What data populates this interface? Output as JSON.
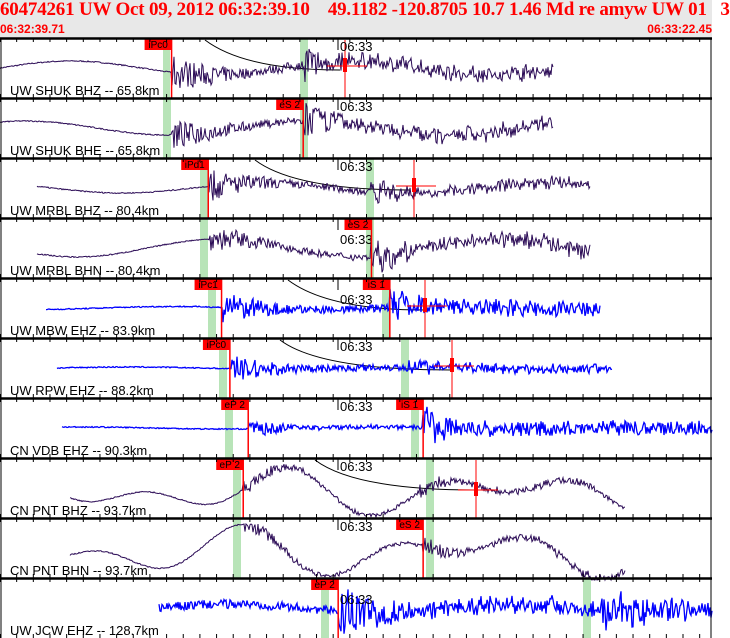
{
  "header": {
    "title": "60474261 UW Oct 09, 2012 06:32:39.10    49.1182 -120.8705 10.7 1.46 Md re amyw UW 01   3",
    "start_time": "06:32:39.71",
    "end_time": "06:33:22.45"
  },
  "window_seconds": 42.74,
  "minute_mark": {
    "label": "06:33",
    "seconds": 20.29
  },
  "colors": {
    "header_text": "#ff0000",
    "header_bg": "#e8e8e8",
    "trace_bb": "#2a0a55",
    "trace_sp": "#0000ff",
    "pick": "#ff0000",
    "theory_band": "#b8e4b8"
  },
  "channels": [
    {
      "label": "UW SHUK BHZ -- 65.8km",
      "type": "bb",
      "picks": [
        {
          "label": "iPc0",
          "t": 10.3
        }
      ]
    },
    {
      "label": "UW SHUK BHE -- 65.8km",
      "type": "bb",
      "picks": [
        {
          "label": "eS 2",
          "t": 18.2
        }
      ]
    },
    {
      "label": "UW MRBL BHZ -- 80.4km",
      "type": "bb",
      "picks": [
        {
          "label": "iPd1",
          "t": 12.5
        }
      ]
    },
    {
      "label": "UW MRBL BHN -- 80.4km",
      "type": "bb",
      "picks": [
        {
          "label": "eS 2",
          "t": 22.3
        }
      ]
    },
    {
      "label": "UW MBW EHZ -- 83.9km",
      "type": "sp",
      "picks": [
        {
          "label": "iPc1",
          "t": 13.3
        },
        {
          "label": "iS 1",
          "t": 23.4
        }
      ]
    },
    {
      "label": "UW RPW EHZ -- 88.2km",
      "type": "sp",
      "picks": [
        {
          "label": "iPc0",
          "t": 13.8
        }
      ]
    },
    {
      "label": "CN VDB EHZ -- 90.3km",
      "type": "sp",
      "picks": [
        {
          "label": "eP 2",
          "t": 14.9
        },
        {
          "label": "iS 1",
          "t": 25.4
        }
      ]
    },
    {
      "label": "CN PNT BHZ -- 93.7km",
      "type": "bb",
      "picks": [
        {
          "label": "eP 2",
          "t": 14.6
        }
      ]
    },
    {
      "label": "CN PNT BHN -- 93.7km",
      "type": "bb",
      "picks": [
        {
          "label": "eS 2",
          "t": 25.4
        }
      ]
    },
    {
      "label": "UW JCW EHZ -- 128.7km",
      "type": "sp",
      "picks": [
        {
          "label": "eP 2",
          "t": 20.3
        }
      ]
    }
  ]
}
